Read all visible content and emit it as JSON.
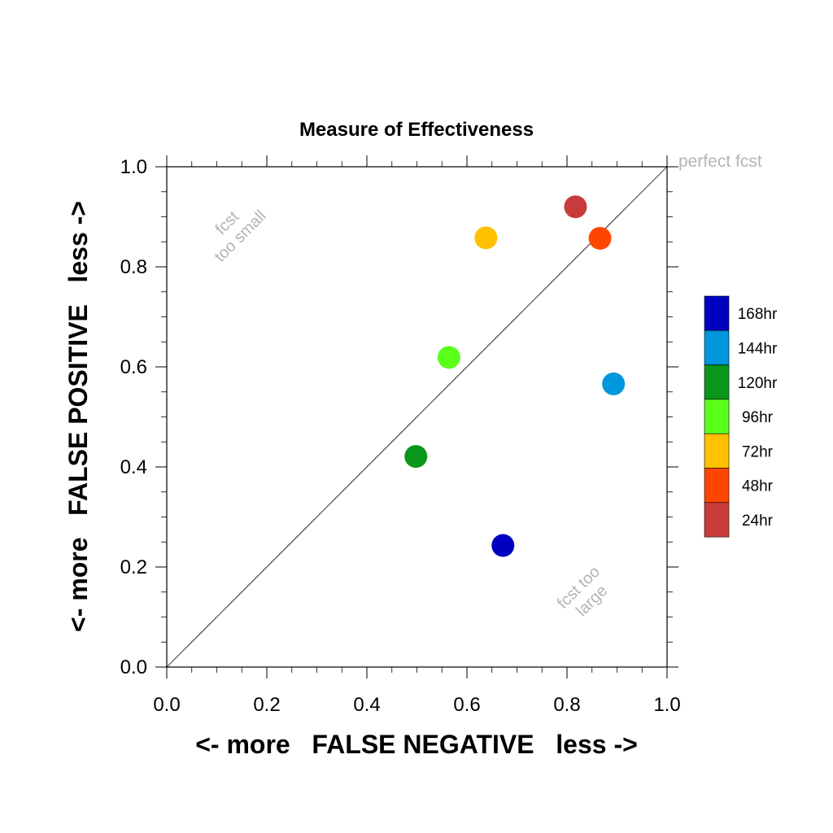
{
  "chart_data": {
    "type": "scatter",
    "title": "Measure of Effectiveness",
    "xlabel": "<- more   FALSE NEGATIVE   less ->",
    "ylabel": "<- more   FALSE POSITIVE   less ->",
    "xlim": [
      0.0,
      1.0
    ],
    "ylim": [
      0.0,
      1.0
    ],
    "xticks": [
      "0.0",
      "0.2",
      "0.4",
      "0.6",
      "0.8",
      "1.0"
    ],
    "yticks": [
      "0.0",
      "0.2",
      "0.4",
      "0.6",
      "0.8",
      "1.0"
    ],
    "grid": false,
    "reference_line": {
      "from": [
        0,
        0
      ],
      "to": [
        1,
        1
      ]
    },
    "annotations": {
      "perfect": "perfect fcst",
      "too_small": [
        "fcst",
        "too small"
      ],
      "too_large": [
        "fcst too",
        "large"
      ]
    },
    "legend_position": "right",
    "series": [
      {
        "name": "168hr",
        "color": "#0000c0",
        "x": 0.672,
        "y": 0.243
      },
      {
        "name": "144hr",
        "color": "#0096dc",
        "x": 0.893,
        "y": 0.566
      },
      {
        "name": "120hr",
        "color": "#0a961a",
        "x": 0.498,
        "y": 0.421
      },
      {
        "name": "96hr",
        "color": "#5aff1a",
        "x": 0.564,
        "y": 0.619
      },
      {
        "name": "72hr",
        "color": "#ffc000",
        "x": 0.638,
        "y": 0.858
      },
      {
        "name": "48hr",
        "color": "#ff4600",
        "x": 0.866,
        "y": 0.857
      },
      {
        "name": "24hr",
        "color": "#c83c3c",
        "x": 0.817,
        "y": 0.92
      }
    ]
  }
}
